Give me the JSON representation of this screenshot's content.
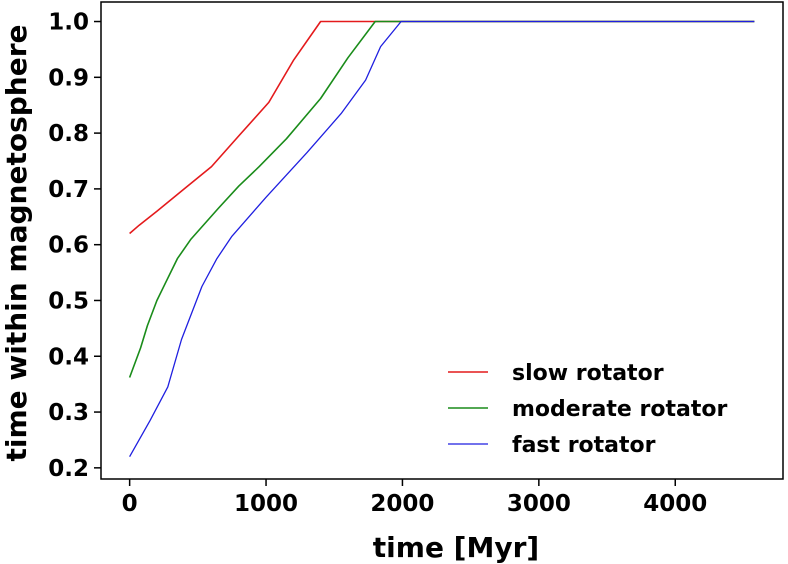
{
  "chart_data": {
    "type": "line",
    "title": "",
    "xlabel": "time [Myr]",
    "ylabel": "time within magnetosphere",
    "xlim": [
      -210,
      4790
    ],
    "ylim": [
      0.18,
      1.035
    ],
    "xticks": [
      0,
      1000,
      2000,
      3000,
      4000
    ],
    "xtick_labels": [
      "0",
      "1000",
      "2000",
      "3000",
      "4000"
    ],
    "yticks": [
      0.2,
      0.3,
      0.4,
      0.5,
      0.6,
      0.7,
      0.8,
      0.9,
      1.0
    ],
    "ytick_labels": [
      "0.2",
      "0.3",
      "0.4",
      "0.5",
      "0.6",
      "0.7",
      "0.8",
      "0.9",
      "1.0"
    ],
    "grid": false,
    "legend_position": "lower-right",
    "series": [
      {
        "name": "slow rotator",
        "color": "#e41a1c",
        "x": [
          0,
          70,
          200,
          400,
          600,
          800,
          1020,
          1200,
          1400,
          1800,
          4580
        ],
        "y": [
          0.62,
          0.635,
          0.66,
          0.7,
          0.74,
          0.795,
          0.855,
          0.93,
          1.0,
          1.0,
          1.0
        ]
      },
      {
        "name": "moderate rotator",
        "color": "#1a8c1a",
        "x": [
          0,
          80,
          130,
          200,
          260,
          350,
          450,
          650,
          800,
          950,
          1150,
          1400,
          1600,
          1800,
          2000,
          4580
        ],
        "y": [
          0.362,
          0.415,
          0.455,
          0.5,
          0.53,
          0.575,
          0.61,
          0.665,
          0.705,
          0.74,
          0.79,
          0.862,
          0.935,
          1.0,
          1.0,
          1.0
        ]
      },
      {
        "name": "fast rotator",
        "color": "#1f1fe0",
        "x": [
          0,
          150,
          280,
          380,
          530,
          640,
          750,
          1000,
          1300,
          1550,
          1730,
          1840,
          1990,
          4580
        ],
        "y": [
          0.22,
          0.285,
          0.345,
          0.43,
          0.525,
          0.575,
          0.615,
          0.685,
          0.765,
          0.835,
          0.895,
          0.955,
          1.0,
          1.0
        ]
      }
    ]
  }
}
